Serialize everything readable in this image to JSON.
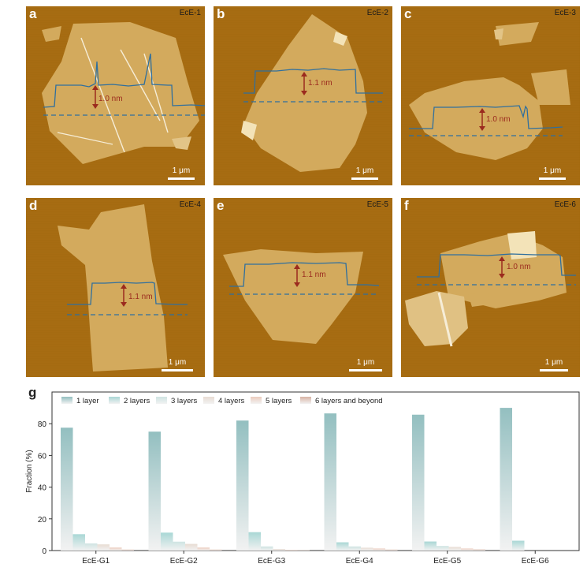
{
  "colors": {
    "afm_background": "#a86d12",
    "flake": "#d2aa5e",
    "flake_bright": "#f3e3b8",
    "profile_line": "#2f6f9e",
    "height_arrow": "#9b2a1e"
  },
  "panels": [
    {
      "label": "a",
      "sample": "EcE-1",
      "height": "1.0 nm",
      "scalebar": "1 μm"
    },
    {
      "label": "b",
      "sample": "EcE-2",
      "height": "1.1 nm",
      "scalebar": "1 μm"
    },
    {
      "label": "c",
      "sample": "EcE-3",
      "height": "1.0 nm",
      "scalebar": "1 μm"
    },
    {
      "label": "d",
      "sample": "EcE-4",
      "height": "1.1 nm",
      "scalebar": "1 μm"
    },
    {
      "label": "e",
      "sample": "EcE-5",
      "height": "1.1 nm",
      "scalebar": "1 μm"
    },
    {
      "label": "f",
      "sample": "EcE-6",
      "height": "1.0 nm",
      "scalebar": "1 μm"
    }
  ],
  "chart_panel_label": "g",
  "chart_data": {
    "type": "bar",
    "title": "",
    "xlabel": "",
    "ylabel": "Fraction (%)",
    "ylim": [
      0,
      100
    ],
    "yticks": [
      0,
      20,
      40,
      60,
      80
    ],
    "categories": [
      "EcE-G1",
      "EcE-G2",
      "EcE-G3",
      "EcE-G4",
      "EcE-G5",
      "EcE-G6"
    ],
    "legend_position": "top",
    "series": [
      {
        "name": "1 layer",
        "color": "#93bfc0",
        "values": [
          77.5,
          75.0,
          82.0,
          86.5,
          85.7,
          90.0
        ]
      },
      {
        "name": "2 layers",
        "color": "#a9d7d5",
        "values": [
          10.3,
          11.3,
          11.6,
          5.2,
          5.7,
          6.2
        ]
      },
      {
        "name": "3 layers",
        "color": "#cfe4e2",
        "values": [
          4.5,
          5.6,
          2.6,
          2.6,
          2.9,
          0
        ]
      },
      {
        "name": "4 layers",
        "color": "#e8dcd3",
        "values": [
          3.9,
          4.2,
          1.0,
          1.8,
          2.3,
          0
        ]
      },
      {
        "name": "5 layers",
        "color": "#ecccbd",
        "values": [
          1.9,
          1.9,
          0.5,
          1.3,
          1.3,
          0
        ]
      },
      {
        "name": "6 layers and beyond",
        "color": "#d8b3a3",
        "values": [
          0.6,
          0.6,
          0.2,
          0.6,
          0.7,
          0
        ]
      }
    ]
  }
}
